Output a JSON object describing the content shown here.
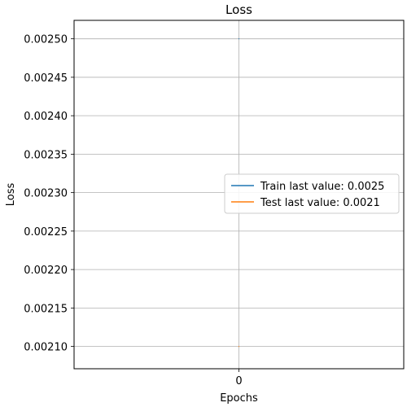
{
  "chart_data": {
    "type": "line",
    "title": "Loss",
    "xlabel": "Epochs",
    "ylabel": "Loss",
    "x": [
      0
    ],
    "xticks": [
      "0"
    ],
    "ylim": [
      0.002071,
      0.002524
    ],
    "yticks": [
      "0.00210",
      "0.00215",
      "0.00220",
      "0.00225",
      "0.00230",
      "0.00235",
      "0.00240",
      "0.00245",
      "0.00250"
    ],
    "grid": true,
    "legend_position": "center-right",
    "series": [
      {
        "name": "Train last value: 0.0025",
        "color": "#1f77b4",
        "values": [
          0.0025
        ]
      },
      {
        "name": "Test last value: 0.0021",
        "color": "#ff7f0e",
        "values": [
          0.0021
        ]
      }
    ]
  }
}
